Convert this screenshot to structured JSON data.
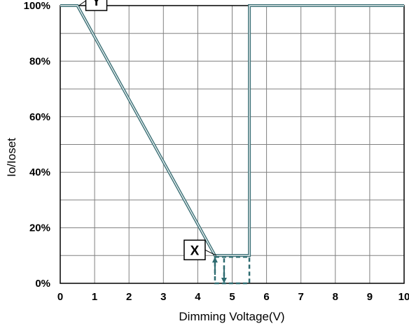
{
  "chart_data": {
    "type": "line",
    "title": "",
    "xlabel": "Dimming Voltage(V)",
    "ylabel": "Io/Ioset",
    "xlim": [
      0,
      10
    ],
    "ylim": [
      0,
      100
    ],
    "grid": true,
    "x_ticks": [
      "0",
      "1",
      "2",
      "3",
      "4",
      "5",
      "6",
      "7",
      "8",
      "9",
      "10"
    ],
    "y_ticks": [
      "0%",
      "20%",
      "40%",
      "60%",
      "80%",
      "100%"
    ],
    "series": [
      {
        "x": [
          0,
          0.5,
          4.5,
          5.5,
          5.5,
          10
        ],
        "y": [
          100,
          100,
          10,
          10,
          100,
          100
        ]
      }
    ],
    "annotations": [
      {
        "label": "Y",
        "x": 0.5,
        "y": 100
      },
      {
        "label": "X",
        "x": 4.5,
        "y": 10
      }
    ],
    "colors": {
      "line": "#3a6f75",
      "line_inner": "#ffffff",
      "grid": "#808080",
      "dashed": "#2e6b70"
    }
  }
}
